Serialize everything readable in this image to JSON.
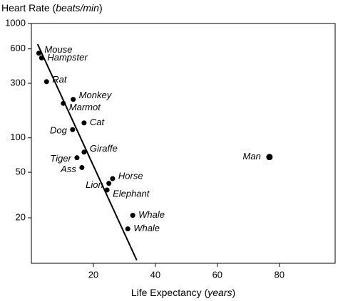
{
  "chart_data": {
    "type": "scatter",
    "y_label": [
      "Heart Rate (",
      "beats/min",
      ")"
    ],
    "x_label": [
      "Life Expectancy (",
      "years",
      ")"
    ],
    "point_labels": [
      "Mouse",
      "Hampster",
      "Rat",
      "Monkey",
      "Marmot",
      "Cat",
      "Dog",
      "Giraffe",
      "Tiger",
      "Ass",
      "Horse",
      "Lion",
      "Elephant",
      "Whale",
      "Whale",
      "Man"
    ],
    "x": [
      2.4,
      3.3,
      4.9,
      13.5,
      10.3,
      17,
      13.3,
      17,
      14.7,
      16.3,
      26.2,
      25,
      24.4,
      32.7,
      31.1,
      76.8
    ],
    "values": [
      550,
      500,
      310,
      217,
      200,
      135,
      118,
      75,
      67,
      55,
      44,
      40,
      35,
      21,
      16,
      68
    ],
    "color": "#000000",
    "fit_line": {
      "x": [
        2,
        34
      ],
      "values": [
        660,
        8.5
      ]
    },
    "xlim": [
      0,
      98
    ],
    "xticks": [
      20,
      40,
      60,
      80
    ],
    "ylim": [
      8,
      1000
    ],
    "yticks": [
      20,
      50,
      100,
      300,
      600,
      1000
    ],
    "log_y": true
  }
}
